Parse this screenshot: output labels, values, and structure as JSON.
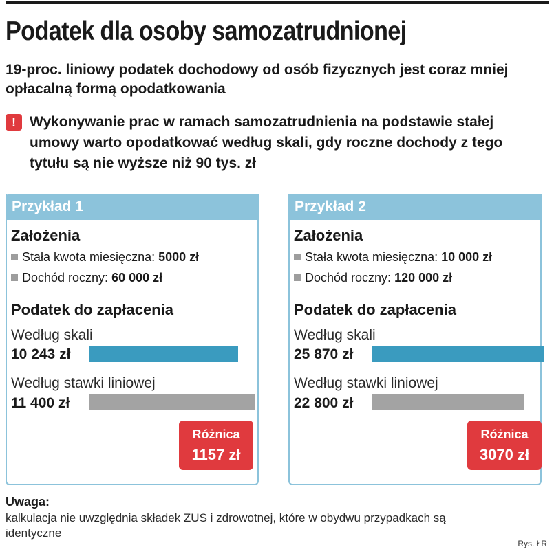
{
  "header": {
    "title": "Podatek dla osoby samozatrudnionej",
    "subtitle": "19-proc. liniowy podatek dochodowy od osób fizycznych jest coraz mniej opłacalną formą opodatkowania",
    "alert_icon": "!",
    "alert_text": "Wykonywanie prac w ramach samozatrudnienia na podstawie stałej umowy warto opodatkować według skali, gdy roczne dochody z tego tytułu są nie wyższe niż 90 tys. zł"
  },
  "examples": [
    {
      "title": "Przykład 1",
      "assumptions_heading": "Założenia",
      "monthly_label": "Stała kwota miesięczna:",
      "monthly_value": "5000 zł",
      "annual_label": "Dochód roczny:",
      "annual_value": "60 000 zł",
      "tax_heading": "Podatek do zapłacenia",
      "scale_label": "Według skali",
      "scale_value": "10 243 zł",
      "linear_label": "Według stawki liniowej",
      "linear_value": "11 400 zł",
      "diff_label": "Różnica",
      "diff_value": "1157 zł"
    },
    {
      "title": "Przykład 2",
      "assumptions_heading": "Założenia",
      "monthly_label": "Stała kwota miesięczna:",
      "monthly_value": "10 000 zł",
      "annual_label": "Dochód roczny:",
      "annual_value": "120 000 zł",
      "tax_heading": "Podatek do zapłacenia",
      "scale_label": "Według skali",
      "scale_value": "25 870 zł",
      "linear_label": "Według stawki liniowej",
      "linear_value": "22 800 zł",
      "diff_label": "Różnica",
      "diff_value": "3070 zł"
    }
  ],
  "note": {
    "heading": "Uwaga:",
    "text": "kalkulacja nie uwzględnia składek ZUS i zdrowotnej, które w obydwu przypadkach są identyczne"
  },
  "credit": "Rys. ŁR",
  "colors": {
    "panel_header": "#8cc3db",
    "scale_bar": "#3a9bbf",
    "linear_bar": "#a3a3a3",
    "difference_box": "#e03a3e"
  },
  "chart_data": [
    {
      "type": "bar",
      "title": "Przykład 1",
      "categories": [
        "Według skali",
        "Według stawki liniowej"
      ],
      "values": [
        10243,
        11400
      ],
      "unit": "zł"
    },
    {
      "type": "bar",
      "title": "Przykład 2",
      "categories": [
        "Według skali",
        "Według stawki liniowej"
      ],
      "values": [
        25870,
        22800
      ],
      "unit": "zł"
    }
  ]
}
